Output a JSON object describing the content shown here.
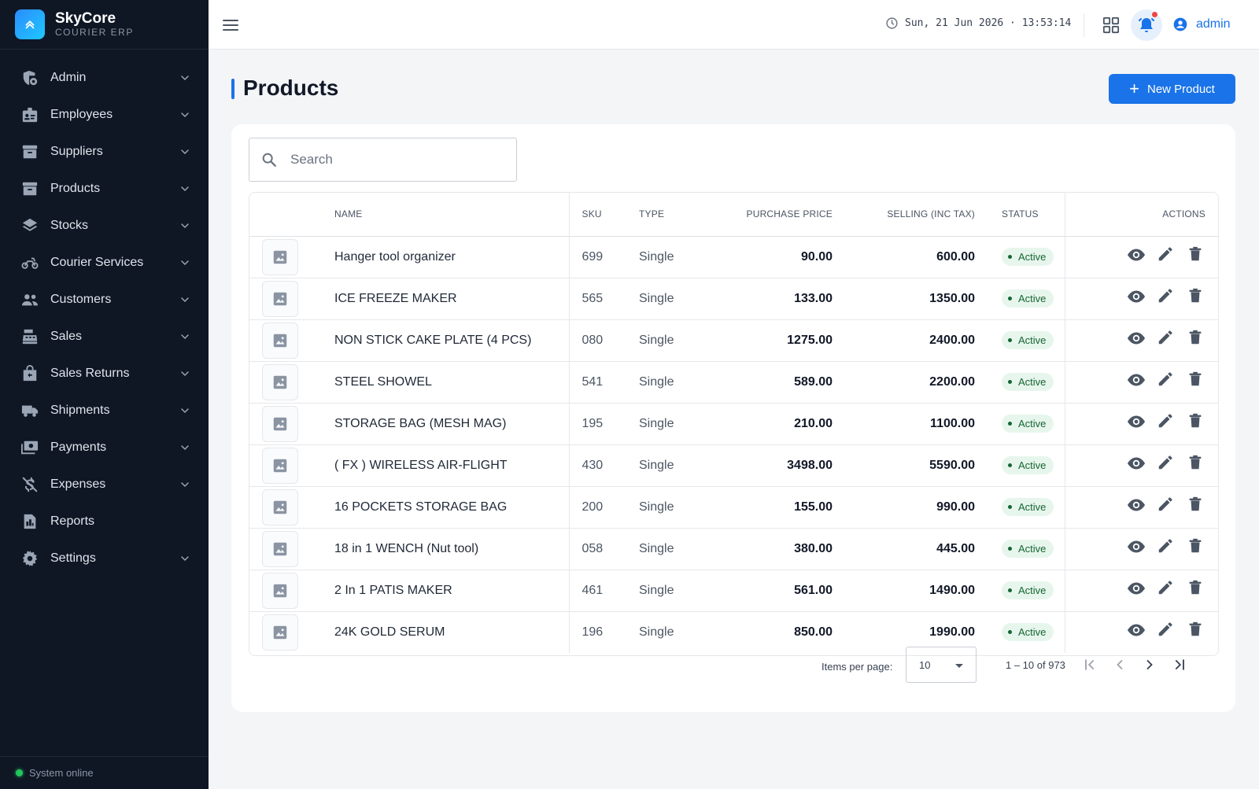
{
  "brand": {
    "name": "SkyCore",
    "sub": "COURIER ERP"
  },
  "sidebar": {
    "items": [
      {
        "label": "Admin",
        "icon": "admin-shield-icon"
      },
      {
        "label": "Employees",
        "icon": "badge-icon"
      },
      {
        "label": "Suppliers",
        "icon": "archive-icon"
      },
      {
        "label": "Products",
        "icon": "inventory-icon"
      },
      {
        "label": "Stocks",
        "icon": "layers-icon"
      },
      {
        "label": "Courier Services",
        "icon": "motorcycle-icon"
      },
      {
        "label": "Customers",
        "icon": "people-icon"
      },
      {
        "label": "Sales",
        "icon": "cash-register-icon"
      },
      {
        "label": "Sales Returns",
        "icon": "return-bag-icon"
      },
      {
        "label": "Shipments",
        "icon": "truck-icon"
      },
      {
        "label": "Payments",
        "icon": "payments-icon"
      },
      {
        "label": "Expenses",
        "icon": "money-off-icon"
      },
      {
        "label": "Reports",
        "icon": "report-icon"
      },
      {
        "label": "Settings",
        "icon": "gear-icon"
      }
    ],
    "status": "System online"
  },
  "topbar": {
    "datetime": "Sun, 21 Jun 2026 · 13:53:14",
    "user": "admin"
  },
  "page": {
    "title": "Products",
    "new_button": "New Product",
    "search_placeholder": "Search"
  },
  "table": {
    "headers": {
      "name": "NAME",
      "sku": "SKU",
      "type": "TYPE",
      "purchase": "PURCHASE PRICE",
      "selling": "SELLING (INC TAX)",
      "status": "STATUS",
      "actions": "ACTIONS"
    },
    "rows": [
      {
        "name": "Hanger tool organizer",
        "sku": "699",
        "type": "Single",
        "purchase": "90.00",
        "selling": "600.00",
        "status": "Active"
      },
      {
        "name": "ICE FREEZE MAKER",
        "sku": "565",
        "type": "Single",
        "purchase": "133.00",
        "selling": "1350.00",
        "status": "Active"
      },
      {
        "name": "NON STICK CAKE PLATE (4 PCS)",
        "sku": "080",
        "type": "Single",
        "purchase": "1275.00",
        "selling": "2400.00",
        "status": "Active"
      },
      {
        "name": "STEEL SHOWEL",
        "sku": "541",
        "type": "Single",
        "purchase": "589.00",
        "selling": "2200.00",
        "status": "Active"
      },
      {
        "name": "STORAGE BAG (MESH MAG)",
        "sku": "195",
        "type": "Single",
        "purchase": "210.00",
        "selling": "1100.00",
        "status": "Active"
      },
      {
        "name": "( FX ) WIRELESS AIR-FLIGHT",
        "sku": "430",
        "type": "Single",
        "purchase": "3498.00",
        "selling": "5590.00",
        "status": "Active"
      },
      {
        "name": "16 POCKETS STORAGE BAG",
        "sku": "200",
        "type": "Single",
        "purchase": "155.00",
        "selling": "990.00",
        "status": "Active"
      },
      {
        "name": "18 in 1 WENCH (Nut tool)",
        "sku": "058",
        "type": "Single",
        "purchase": "380.00",
        "selling": "445.00",
        "status": "Active"
      },
      {
        "name": "2 In 1 PATIS MAKER",
        "sku": "461",
        "type": "Single",
        "purchase": "561.00",
        "selling": "1490.00",
        "status": "Active"
      },
      {
        "name": "24K GOLD SERUM",
        "sku": "196",
        "type": "Single",
        "purchase": "850.00",
        "selling": "1990.00",
        "status": "Active"
      }
    ]
  },
  "pager": {
    "label": "Items per page:",
    "per_page": "10",
    "range": "1 – 10 of 973"
  },
  "colors": {
    "accent": "#1a73e8",
    "sidebar_bg": "#0f1724",
    "status_active_bg": "#e7f6ec",
    "status_active_fg": "#166534"
  }
}
